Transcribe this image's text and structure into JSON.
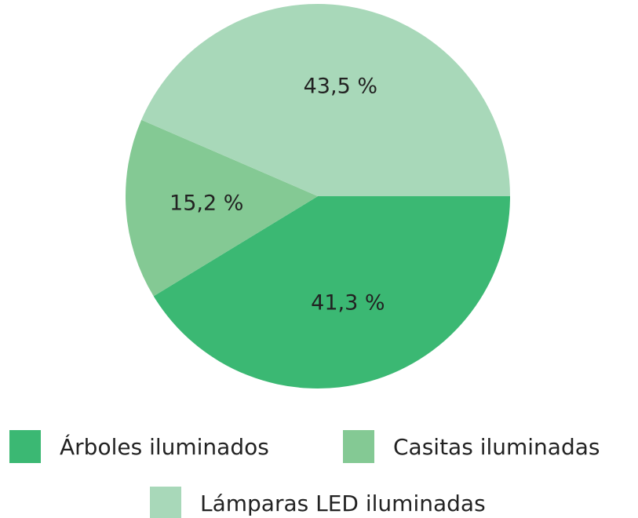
{
  "chart_data": {
    "type": "pie",
    "categories": [
      "Árboles iluminados",
      "Casitas iluminadas",
      "Lámparas LED iluminadas"
    ],
    "values": [
      41.3,
      15.2,
      43.5
    ],
    "value_labels": [
      "41,3 %",
      "15,2 %",
      "43,5 %"
    ],
    "colors": [
      "#3bb873",
      "#84c994",
      "#a8d8b9"
    ],
    "legend": "bottom"
  }
}
